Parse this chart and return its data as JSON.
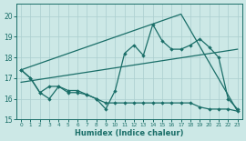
{
  "xlabel": "Humidex (Indice chaleur)",
  "background_color": "#cce8e6",
  "grid_color": "#aacece",
  "line_color": "#1a6e68",
  "x_ticks": [
    0,
    1,
    2,
    3,
    4,
    5,
    6,
    7,
    8,
    9,
    10,
    11,
    12,
    13,
    14,
    15,
    16,
    17,
    18,
    19,
    20,
    21,
    22,
    23
  ],
  "y_ticks": [
    15,
    16,
    17,
    18,
    19,
    20
  ],
  "xlim": [
    -0.5,
    23.5
  ],
  "ylim": [
    15.0,
    20.6
  ],
  "curve1_x": [
    0,
    1,
    2,
    3,
    4,
    5,
    6,
    7,
    8,
    9,
    10,
    11,
    12,
    13,
    14,
    15,
    16,
    17,
    18,
    19,
    20,
    21,
    22,
    23
  ],
  "curve1_y": [
    17.4,
    17.0,
    16.3,
    16.0,
    16.6,
    16.4,
    16.4,
    16.2,
    16.0,
    15.5,
    16.4,
    18.2,
    18.6,
    18.1,
    19.6,
    18.8,
    18.4,
    18.4,
    18.6,
    18.9,
    18.5,
    18.0,
    16.0,
    15.5
  ],
  "curve2_x": [
    0,
    1,
    2,
    3,
    4,
    5,
    6,
    7,
    8,
    9,
    10,
    11,
    12,
    13,
    14,
    15,
    16,
    17,
    18,
    19,
    20,
    21,
    22,
    23
  ],
  "curve2_y": [
    17.4,
    17.0,
    16.3,
    16.6,
    16.6,
    16.3,
    16.3,
    16.2,
    16.0,
    15.8,
    15.8,
    15.8,
    15.8,
    15.8,
    15.8,
    15.8,
    15.8,
    15.8,
    15.8,
    15.6,
    15.5,
    15.5,
    15.5,
    15.4
  ],
  "trend1_x": [
    0,
    23
  ],
  "trend1_y": [
    16.8,
    18.4
  ],
  "trend2_x": [
    0,
    17,
    23
  ],
  "trend2_y": [
    17.4,
    20.1,
    15.4
  ],
  "lw": 0.9,
  "ms": 2.2
}
